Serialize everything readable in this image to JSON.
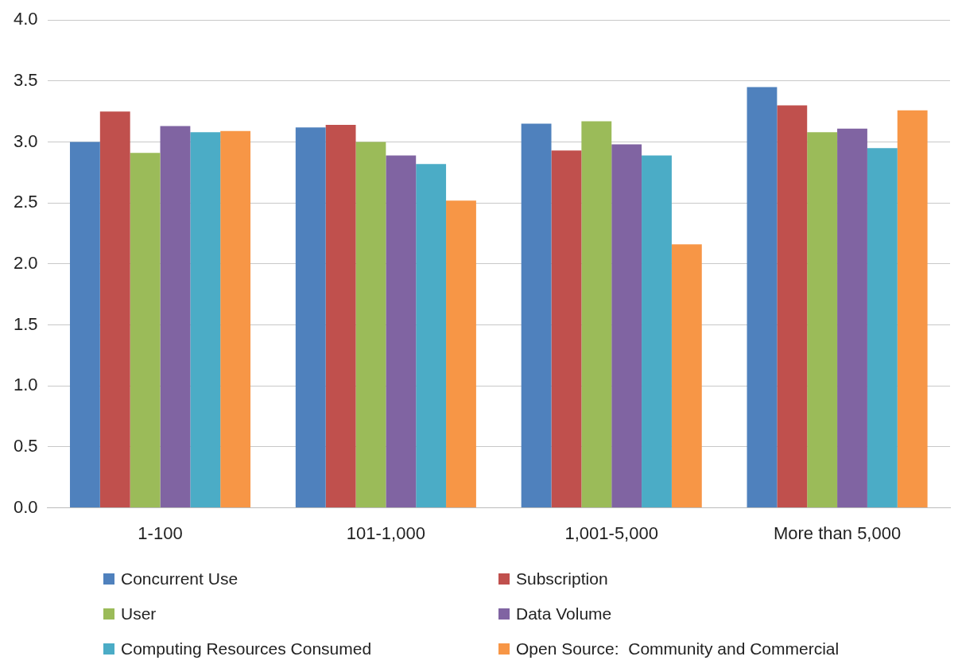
{
  "chart_data": {
    "type": "bar",
    "categories": [
      "1-100",
      "101-1,000",
      "1,001-5,000",
      "More than 5,000"
    ],
    "series": [
      {
        "name": "Concurrent Use",
        "color": "#4f81bd",
        "values": [
          3.0,
          3.12,
          3.15,
          3.45
        ]
      },
      {
        "name": "Subscription",
        "color": "#c0504d",
        "values": [
          3.25,
          3.14,
          2.93,
          3.3
        ]
      },
      {
        "name": "User",
        "color": "#9bbb59",
        "values": [
          2.91,
          3.0,
          3.17,
          3.08
        ]
      },
      {
        "name": "Data Volume",
        "color": "#8064a2",
        "values": [
          3.13,
          2.89,
          2.98,
          3.11
        ]
      },
      {
        "name": "Computing Resources Consumed",
        "color": "#4bacc6",
        "values": [
          3.08,
          2.82,
          2.89,
          2.95
        ]
      },
      {
        "name": "Open Source:  Community and Commercial",
        "color": "#f79646",
        "values": [
          3.09,
          2.52,
          2.16,
          3.26
        ]
      }
    ],
    "ylim": [
      0,
      4
    ],
    "yticks": [
      {
        "value": 0,
        "label": "0.0"
      },
      0.5,
      {
        "value": 1,
        "label": "1.0"
      },
      1.5,
      {
        "value": 2,
        "label": "2.0"
      },
      2.5,
      {
        "value": 3,
        "label": "3.0"
      },
      3.5,
      {
        "value": 4,
        "label": "4.0"
      }
    ],
    "grid": "y",
    "legend": "bottom"
  }
}
